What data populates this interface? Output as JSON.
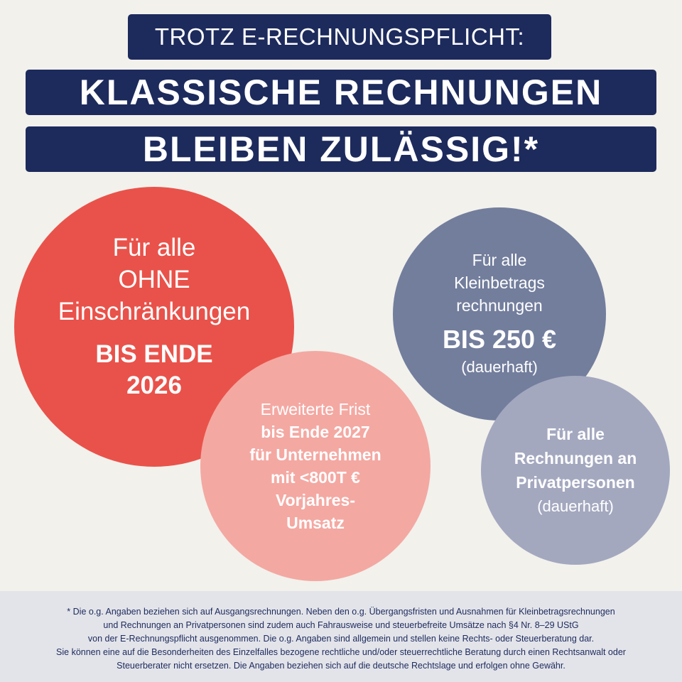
{
  "header": {
    "line1": "TROTZ E-RECHNUNGSPFLICHT:",
    "line2": "KLASSISCHE RECHNUNGEN",
    "line3": "BLEIBEN ZULÄSSIG!*"
  },
  "circles": [
    {
      "lines": [
        "Für alle",
        "OHNE",
        "Einschränkungen"
      ],
      "bold": [
        "BIS ENDE",
        "2026"
      ],
      "color": "#e9524a"
    },
    {
      "intro": "Erweiterte Frist",
      "bold": [
        "bis Ende 2027",
        "für Unternehmen",
        "mit <800T €",
        "Vorjahres-",
        "Umsatz"
      ],
      "color": "#f4a8a2"
    },
    {
      "lines": [
        "Für alle",
        "Kleinbetrags",
        "rechnungen"
      ],
      "bold": "BIS 250 €",
      "note": "(dauerhaft)",
      "color": "#737e9d"
    },
    {
      "bold": [
        "Für alle",
        "Rechnungen an",
        "Privatpersonen"
      ],
      "note": "(dauerhaft)",
      "color": "#a3a8bf"
    }
  ],
  "footer": {
    "lines": [
      "* Die o.g. Angaben beziehen sich auf Ausgangsrechnungen. Neben den o.g. Übergangsfristen und Ausnahmen für Kleinbetragsrechnungen",
      "und Rechnungen an Privatpersonen sind zudem auch Fahrausweise und steuerbefreite Umsätze nach §4 Nr. 8–29 UStG",
      "von der E-Rechnungspflicht ausgenommen. Die o.g. Angaben sind allgemein und stellen keine Rechts- oder Steuerberatung dar.",
      "Sie können eine auf die Besonderheiten des Einzelfalles bezogene rechtliche und/oder steuerrechtliche Beratung durch einen Rechtsanwalt oder",
      "Steuerberater nicht ersetzen. Die Angaben beziehen sich auf die deutsche Rechtslage und erfolgen ohne Gewähr."
    ]
  }
}
